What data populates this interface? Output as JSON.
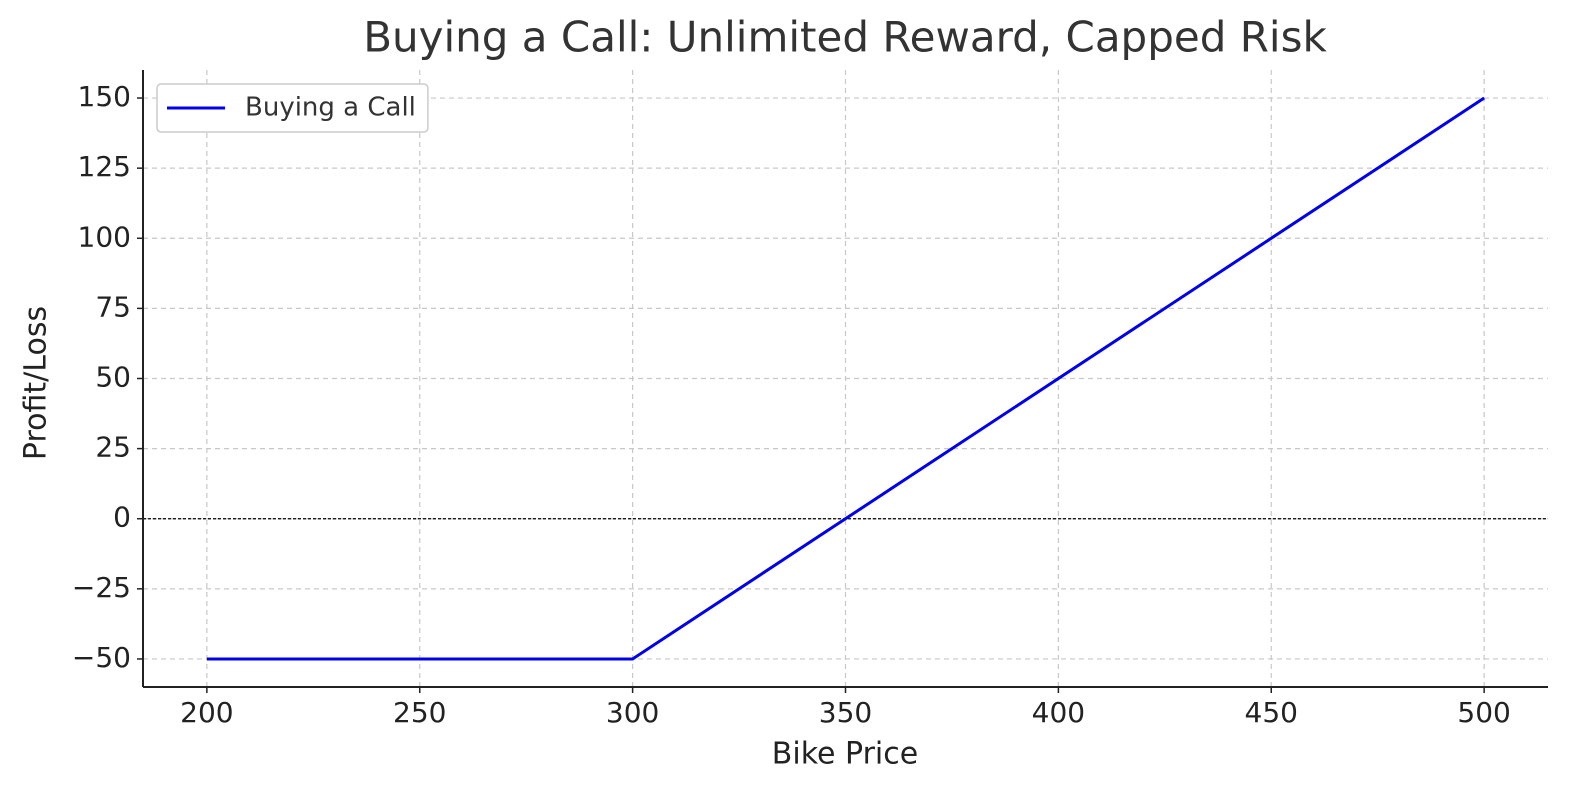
{
  "chart_data": {
    "type": "line",
    "title": "Buying a Call: Unlimited Reward, Capped Risk",
    "x_label": "Bike Price",
    "y_label": "Profit/Loss",
    "x": [
      200,
      300,
      500
    ],
    "series": [
      {
        "name": "Buying a Call",
        "color": "#0000ee",
        "values": [
          -50,
          -50,
          150
        ]
      }
    ],
    "xlim": [
      185,
      515
    ],
    "xticks": [
      200,
      250,
      300,
      350,
      400,
      450,
      500
    ],
    "ylim": [
      -60,
      160
    ],
    "yticks": [
      {
        "value": -50,
        "label": "−50"
      },
      {
        "value": -25,
        "label": "−25"
      },
      0,
      25,
      50,
      75,
      100,
      125,
      150
    ],
    "grid": true,
    "zero_line": true,
    "legend": "upper-left"
  }
}
